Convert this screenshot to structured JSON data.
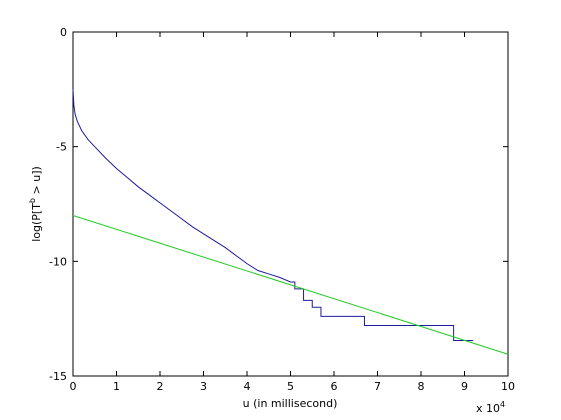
{
  "chart_data": {
    "type": "line",
    "xlabel": "u (in millisecond)",
    "x_exponent": {
      "base": "x 10",
      "power": "4"
    },
    "ylabel": {
      "before": "log(P[T",
      "sup": "b",
      "after": " > u])"
    },
    "xlim": [
      0,
      10
    ],
    "xticks": [
      0,
      1,
      2,
      3,
      4,
      5,
      6,
      7,
      8,
      9,
      10
    ],
    "ylim": [
      -15,
      0
    ],
    "yticks": [
      -15,
      -10,
      -5,
      0
    ],
    "series": [
      {
        "color": "#1c1c9c",
        "x": [
          0,
          0.02,
          0.05,
          0.1,
          0.2,
          0.35,
          0.5,
          0.75,
          1,
          1.25,
          1.5,
          1.75,
          2,
          2.25,
          2.5,
          2.75,
          3,
          3.25,
          3.5,
          3.75,
          4,
          4.25,
          4.5,
          4.75,
          5,
          5.1,
          5.1,
          5.3,
          5.3,
          5.5,
          5.5,
          5.7,
          5.7,
          6.7,
          6.7,
          8.75,
          8.75,
          9.2
        ],
        "values": [
          -2.5,
          -3.2,
          -3.6,
          -3.9,
          -4.3,
          -4.7,
          -5.0,
          -5.5,
          -5.95,
          -6.35,
          -6.75,
          -7.1,
          -7.45,
          -7.8,
          -8.15,
          -8.5,
          -8.8,
          -9.1,
          -9.4,
          -9.75,
          -10.1,
          -10.4,
          -10.55,
          -10.7,
          -10.9,
          -10.9,
          -11.2,
          -11.2,
          -11.7,
          -11.7,
          -12.0,
          -12.0,
          -12.4,
          -12.4,
          -12.8,
          -12.8,
          -13.45,
          -13.45
        ]
      },
      {
        "color": "#22cc22",
        "x": [
          0,
          10
        ],
        "values": [
          -8,
          -14.05
        ]
      }
    ]
  }
}
